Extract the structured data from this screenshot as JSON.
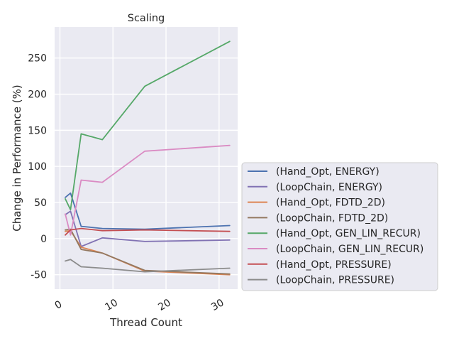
{
  "chart_data": {
    "type": "line",
    "title": "Scaling",
    "xlabel": "Thread Count",
    "ylabel": "Change in Performance (%)",
    "xlim": [
      -1,
      33.5
    ],
    "ylim": [
      -70,
      293
    ],
    "xticks": [
      0,
      10,
      20,
      30
    ],
    "yticks": [
      -50,
      0,
      50,
      100,
      150,
      200,
      250
    ],
    "grid": true,
    "legend_position": "right",
    "series": [
      {
        "name": "(Hand_Opt, ENERGY)",
        "color": "#4c72b0",
        "x": [
          1,
          2,
          4,
          8,
          16,
          32
        ],
        "values": [
          57,
          63,
          17,
          14,
          13,
          18
        ]
      },
      {
        "name": "(LoopChain, ENERGY)",
        "color": "#8172b3",
        "x": [
          1,
          2,
          4,
          8,
          16,
          32
        ],
        "values": [
          33,
          38,
          -11,
          1,
          -4,
          -2
        ]
      },
      {
        "name": "(Hand_Opt, FDTD_2D)",
        "color": "#dd8452",
        "x": [
          1,
          2,
          4,
          8,
          16,
          32
        ],
        "values": [
          10,
          11,
          -12,
          -20,
          -45,
          -50
        ]
      },
      {
        "name": "(LoopChain, FDTD_2D)",
        "color": "#937860",
        "x": [
          1,
          2,
          4,
          8,
          16,
          32
        ],
        "values": [
          12,
          13,
          -15,
          -20,
          -44,
          -49
        ]
      },
      {
        "name": "(Hand_Opt, GEN_LIN_RECUR)",
        "color": "#55a868",
        "x": [
          1,
          2,
          4,
          8,
          16,
          32
        ],
        "values": [
          55,
          40,
          145,
          137,
          211,
          273
        ]
      },
      {
        "name": "(LoopChain, GEN_LIN_RECUR)",
        "color": "#da8bc3",
        "x": [
          1,
          2,
          4,
          8,
          16,
          32
        ],
        "values": [
          34,
          5,
          81,
          78,
          121,
          129
        ]
      },
      {
        "name": "(Hand_Opt, PRESSURE)",
        "color": "#c44e52",
        "x": [
          1,
          2,
          4,
          8,
          16,
          32
        ],
        "values": [
          5,
          12,
          14,
          11,
          12,
          10
        ]
      },
      {
        "name": "(LoopChain, PRESSURE)",
        "color": "#8c8c8c",
        "x": [
          1,
          2,
          4,
          8,
          16,
          32
        ],
        "values": [
          -31,
          -29,
          -39,
          -41,
          -46,
          -41
        ]
      }
    ]
  }
}
